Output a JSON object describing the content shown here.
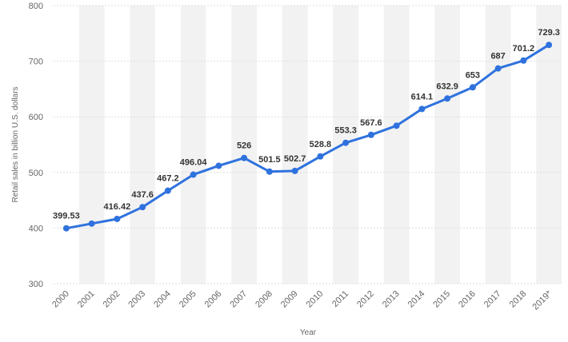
{
  "chart_data": {
    "type": "line",
    "title": "",
    "xlabel": "Year",
    "ylabel": "Retail sales in billion U.S. dollars",
    "categories": [
      "2000",
      "2001",
      "2002",
      "2003",
      "2004",
      "2005",
      "2006",
      "2007",
      "2008",
      "2009",
      "2010",
      "2011",
      "2012",
      "2013",
      "2014",
      "2015",
      "2016",
      "2017",
      "2018",
      "2019*"
    ],
    "series": [
      {
        "values": [
          399.53,
          408,
          416.42,
          437.6,
          467.2,
          496.04,
          512,
          526,
          501.5,
          502.7,
          528.8,
          553.3,
          567.6,
          584,
          614.1,
          632.9,
          653,
          687,
          701.2,
          729.3
        ],
        "labels": [
          "399.53",
          "",
          "416.42",
          "437.6",
          "467.2",
          "496.04",
          "",
          "526",
          "501.5",
          "502.7",
          "528.8",
          "553.3",
          "567.6",
          "",
          "614.1",
          "632.9",
          "653",
          "687",
          "701.2",
          "729.3"
        ]
      }
    ],
    "ylim": [
      300,
      800
    ],
    "yticks": [
      300,
      400,
      500,
      600,
      700,
      800
    ],
    "grid": true,
    "legend": "none",
    "colors": {
      "line": "#2f72de",
      "band": "#f2f2f2",
      "grid": "#dddddd"
    }
  }
}
